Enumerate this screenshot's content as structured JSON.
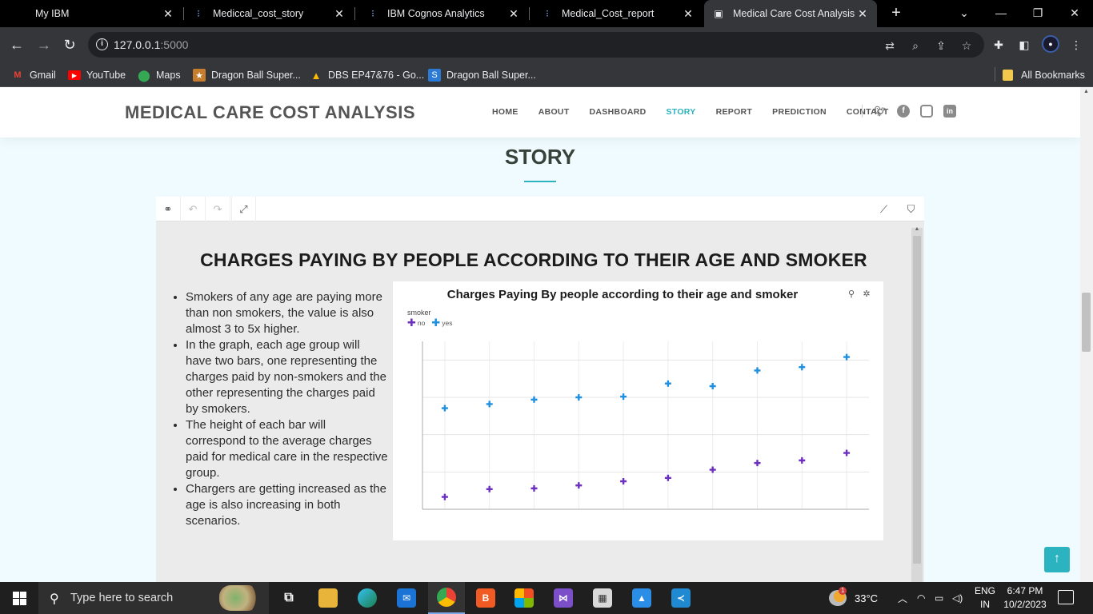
{
  "browser": {
    "tabs": [
      {
        "title": "My IBM",
        "icon": "ibm-icon",
        "active": false
      },
      {
        "title": "Mediccal_cost_story",
        "icon": "cognos-icon",
        "active": false
      },
      {
        "title": "IBM Cognos Analytics",
        "icon": "cognos-icon",
        "active": false
      },
      {
        "title": "Medical_Cost_report",
        "icon": "cognos-icon",
        "active": false
      },
      {
        "title": "Medical Care Cost Analysis",
        "icon": "site-icon",
        "active": true
      }
    ],
    "url_host": "127.0.0.1",
    "url_port": ":5000",
    "bookmarks": [
      {
        "label": "Gmail",
        "icon": "gmail-icon"
      },
      {
        "label": "YouTube",
        "icon": "youtube-icon"
      },
      {
        "label": "Maps",
        "icon": "maps-icon"
      },
      {
        "label": "Dragon Ball Super...",
        "icon": "dragonball-icon"
      },
      {
        "label": "DBS EP47&76 - Go...",
        "icon": "drive-icon"
      },
      {
        "label": "Dragon Ball Super...",
        "icon": "dragonball-site-icon"
      }
    ],
    "all_bookmarks": "All Bookmarks"
  },
  "site": {
    "logo": "MEDICAL CARE COST ANALYSIS",
    "nav": [
      "HOME",
      "ABOUT",
      "DASHBOARD",
      "STORY",
      "REPORT",
      "PREDICTION",
      "CONTACT"
    ],
    "active_nav": "STORY",
    "social": [
      "twitter-icon",
      "facebook-icon",
      "instagram-icon",
      "linkedin-icon"
    ],
    "section_title": "STORY"
  },
  "story": {
    "heading": "CHARGES PAYING BY PEOPLE ACCORDING TO THEIR AGE AND SMOKER",
    "bullets": [
      "Smokers of any age are paying more than non smokers, the value is also almost 3 to 5x higher.",
      "In the graph, each age group will have two bars, one representing the charges paid by non-smokers and the other representing the charges paid by smokers.",
      "The height of each bar will correspond to the average charges paid for medical care in the respective group.",
      "Chargers are getting increased as the age is also increasing in both scenarios."
    ]
  },
  "chart_data": {
    "type": "scatter",
    "title": "Charges Paying By people according to their age and smoker",
    "legend_title": "smoker",
    "legend_position": "top-left",
    "grid": true,
    "ylim": [
      0,
      45
    ],
    "point_count": 10,
    "series": [
      {
        "name": "no",
        "color": "#6d2fbf",
        "values": [
          3.3,
          5.4,
          5.6,
          6.4,
          7.5,
          8.4,
          10.6,
          12.4,
          13.1,
          15.1
        ]
      },
      {
        "name": "yes",
        "color": "#1f8fe0",
        "values": [
          27.1,
          28.2,
          29.4,
          30.0,
          30.2,
          33.7,
          33.0,
          37.2,
          38.1,
          40.8
        ]
      }
    ]
  },
  "taskbar": {
    "search_placeholder": "Type here to search",
    "apps": [
      "task-view-icon",
      "file-explorer-icon",
      "edge-icon",
      "mail-icon",
      "chrome-icon",
      "brave-icon",
      "store-icon",
      "visual-studio-icon",
      "photo-viewer-icon",
      "photos-icon",
      "vscode-icon"
    ],
    "weather_temp": "33°C",
    "weather_badge": "1",
    "lang_line1": "ENG",
    "lang_line2": "IN",
    "time": "6:47 PM",
    "date": "10/2/2023"
  }
}
